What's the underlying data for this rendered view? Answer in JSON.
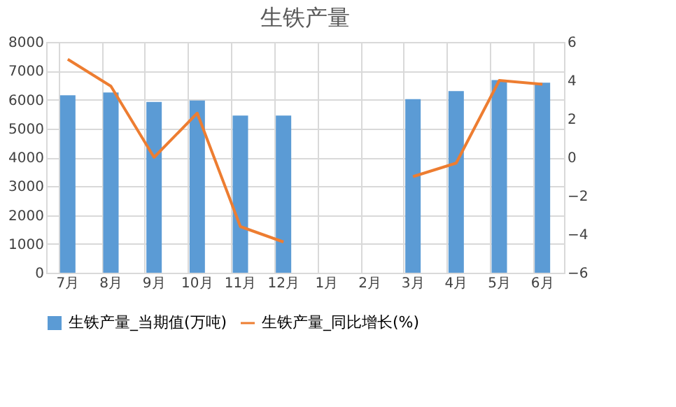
{
  "chart_data": {
    "type": "bar",
    "title": "生铁产量",
    "categories": [
      "7月",
      "8月",
      "9月",
      "10月",
      "11月",
      "12月",
      "1月",
      "2月",
      "3月",
      "4月",
      "5月",
      "6月"
    ],
    "series": [
      {
        "name": "生铁产量_当期值(万吨)",
        "color": "#5b9bd5",
        "values": [
          6150,
          6250,
          5920,
          5970,
          5450,
          5450,
          null,
          null,
          6020,
          6300,
          6680,
          6590
        ]
      },
      {
        "name": "生铁产量_同比增长(%)",
        "type": "line",
        "axis": "y2",
        "color": "#ed7d31",
        "values": [
          5.1,
          3.7,
          0.0,
          2.3,
          -3.6,
          -4.4,
          null,
          null,
          -1.0,
          -0.3,
          4.0,
          3.8
        ]
      }
    ],
    "ylim": [
      0,
      8000
    ],
    "yticks": [
      0,
      1000,
      2000,
      3000,
      4000,
      5000,
      6000,
      7000,
      8000
    ],
    "y2lim": [
      -6,
      6
    ],
    "y2ticks": [
      -6,
      -4,
      -2,
      0,
      2,
      4,
      6
    ],
    "grid": true,
    "legend": "bottom",
    "marker": "none",
    "line_style": "solid"
  }
}
